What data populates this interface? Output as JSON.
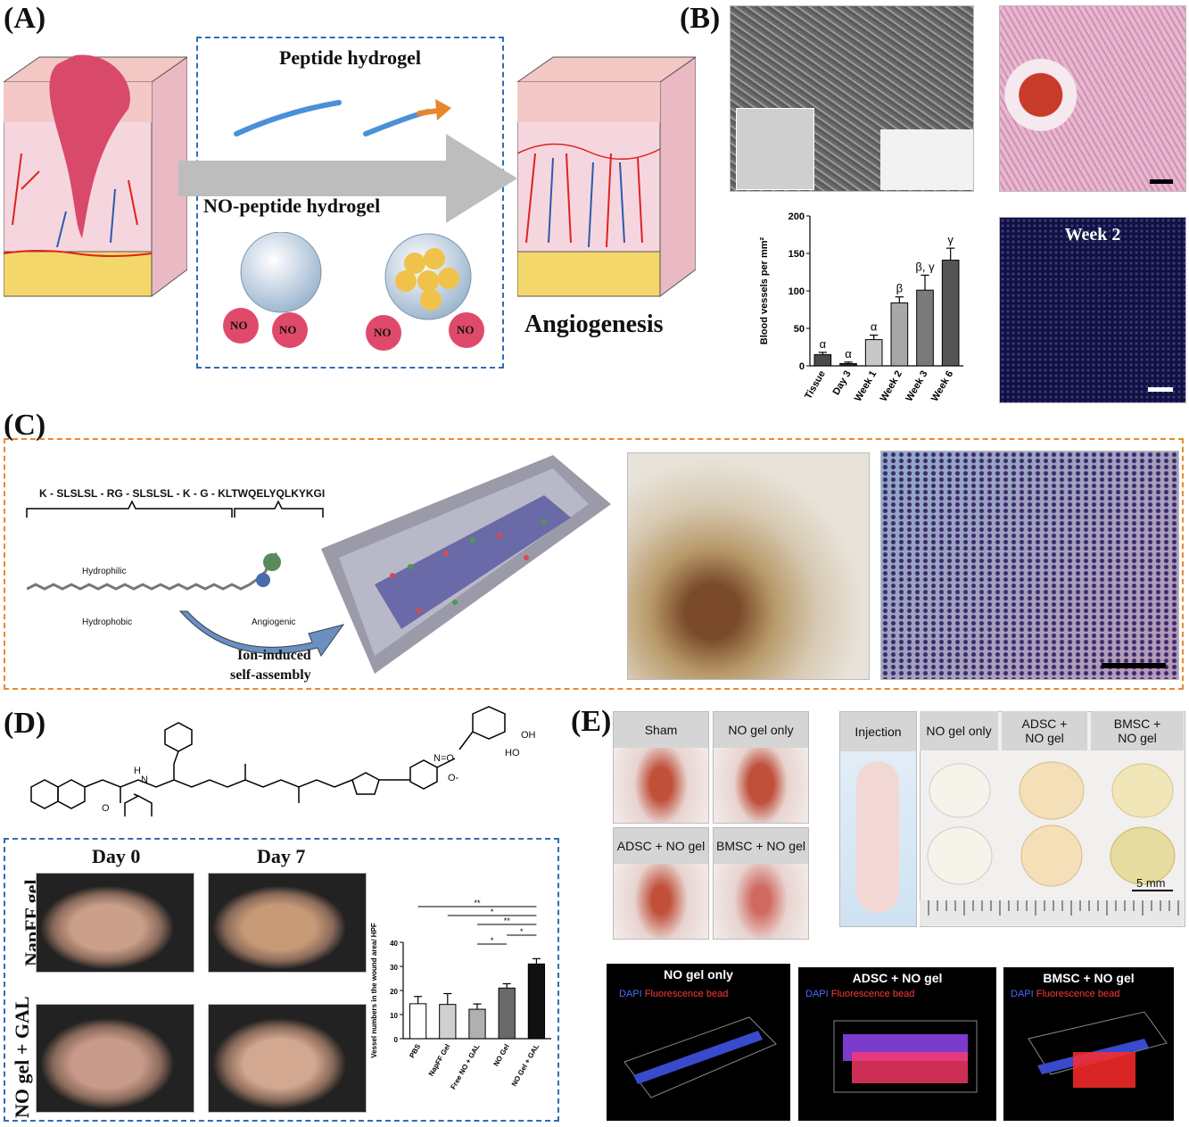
{
  "panels": {
    "a_label": "(A)",
    "b_label": "(B)",
    "c_label": "(C)",
    "d_label": "(D)",
    "e_label": "(E)"
  },
  "panel_a": {
    "peptide_hydrogel": "Peptide hydrogel",
    "no_peptide_hydrogel": "NO-peptide hydrogel",
    "no_label": "NO",
    "angiogenesis": "Angiogenesis"
  },
  "panel_b": {
    "week2": "Week 2"
  },
  "panel_c": {
    "sequence": "K - SLSLSL - RG - SLSLSL - K - G - KLTWQELYQLKYKGI",
    "hydrophilic": "Hydrophilic",
    "hydrophobic": "Hydrophobic",
    "angiogenic": "Angiogenic",
    "ion_induced_1": "Ion-induced",
    "ion_induced_2": "self-assembly"
  },
  "panel_d": {
    "day0": "Day 0",
    "day7": "Day 7",
    "row1": "NapFF gel",
    "row2": "NO gel + GAL",
    "chem_labels": [
      "O",
      "H",
      "N",
      "OH",
      "HO",
      "N=O",
      "O-"
    ]
  },
  "panel_e": {
    "sham": "Sham",
    "no_gel_only": "NO gel only",
    "adsc_no_gel": "ADSC + NO gel",
    "bmsc_no_gel": "BMSC + NO gel",
    "injection": "Injection",
    "adsc_line1": "ADSC +",
    "adsc_line2": "NO gel",
    "bmsc_line1": "BMSC +",
    "bmsc_line2": "NO gel",
    "scale": "5 mm",
    "dapi": "DAPI",
    "fluorescence_bead": "Fluorescence bead"
  },
  "chart_data": [
    {
      "type": "bar",
      "categories": [
        "Tissue",
        "Day 3",
        "Week 1",
        "Week 2",
        "Week 3",
        "Week 6"
      ],
      "values": [
        15,
        3,
        35,
        84,
        101,
        141
      ],
      "errors": [
        3,
        2,
        6,
        8,
        20,
        16
      ],
      "significance": [
        "α",
        "α",
        "α",
        "β",
        "β, γ",
        "γ"
      ],
      "ylabel": "Blood vessels per mm²",
      "ylim": [
        0,
        200
      ],
      "yticks": [
        0,
        50,
        100,
        150,
        200
      ],
      "colors": [
        "#4a4a4a",
        "#2a2a2a",
        "#c8c8c8",
        "#a8a8a8",
        "#7a7a7a",
        "#555555"
      ]
    },
    {
      "type": "bar",
      "categories": [
        "PBS",
        "NapFF Gel",
        "Free NO + GAL",
        "NO Gel",
        "NO Gel + GAL"
      ],
      "values": [
        14.5,
        14.2,
        12.2,
        21.0,
        31.0
      ],
      "errors": [
        3,
        4.5,
        2.2,
        1.8,
        2.2
      ],
      "ylabel": "Vessel numbers in the wound area/ HPF",
      "ylim": [
        0,
        40
      ],
      "yticks": [
        0,
        10,
        20,
        30,
        40
      ],
      "colors": [
        "#ffffff",
        "#d0d0d0",
        "#b0b0b0",
        "#6a6a6a",
        "#111111"
      ],
      "significance": [
        "**",
        "*",
        "**",
        "*",
        "*"
      ]
    }
  ]
}
